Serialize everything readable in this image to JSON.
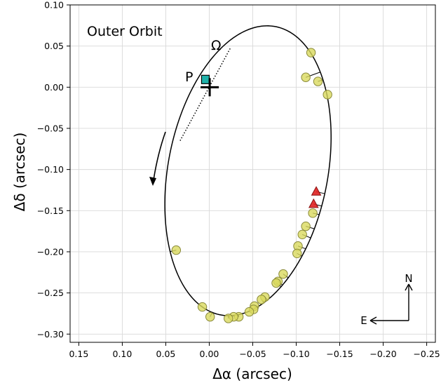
{
  "chart_data": {
    "type": "scatter",
    "title": "Outer Orbit",
    "xlabel": "Δα (arcsec)",
    "ylabel": "Δδ (arcsec)",
    "xlim": [
      0.16,
      -0.26
    ],
    "ylim": [
      -0.31,
      0.1
    ],
    "x_inverted": true,
    "grid": true,
    "xticks": [
      0.15,
      0.1,
      0.05,
      0.0,
      -0.05,
      -0.1,
      -0.15,
      -0.2,
      -0.25
    ],
    "xtick_labels": [
      "0.15",
      "0.10",
      "0.05",
      "0.00",
      "−0.05",
      "−0.10",
      "−0.15",
      "−0.20",
      "−0.25"
    ],
    "yticks": [
      0.1,
      0.05,
      0.0,
      -0.05,
      -0.1,
      -0.15,
      -0.2,
      -0.25,
      -0.3
    ],
    "ytick_labels": [
      "0.10",
      "0.05",
      "0.00",
      "−0.05",
      "−0.10",
      "−0.15",
      "−0.20",
      "−0.25",
      "−0.30"
    ],
    "orbit": {
      "center": [
        -0.0445,
        -0.1015
      ],
      "semi_axes": [
        0.178,
        0.092
      ],
      "rotation_deg": -80.2,
      "color": "#000000"
    },
    "annotations": {
      "omega_label": "Ω",
      "periastron_label": "P",
      "periastron": [
        0.0,
        0.0
      ],
      "ascending_node": [
        -0.024,
        0.047
      ],
      "descending_node": [
        0.034,
        -0.066
      ],
      "primary_marker": [
        -0.0005,
        0.0
      ]
    },
    "series": [
      {
        "marker": "circle",
        "color": "#d9d95e",
        "edge": "#8a8a3a",
        "points": [
          [
            -0.117,
            0.042
          ],
          [
            -0.111,
            0.012
          ],
          [
            -0.125,
            0.007
          ],
          [
            -0.136,
            -0.009
          ],
          [
            -0.119,
            -0.153
          ],
          [
            -0.111,
            -0.169
          ],
          [
            -0.107,
            -0.179
          ],
          [
            -0.102,
            -0.193
          ],
          [
            -0.101,
            -0.202
          ],
          [
            -0.085,
            -0.227
          ],
          [
            -0.079,
            -0.236
          ],
          [
            -0.077,
            -0.238
          ],
          [
            -0.064,
            -0.255
          ],
          [
            -0.06,
            -0.258
          ],
          [
            -0.052,
            -0.266
          ],
          [
            -0.051,
            -0.27
          ],
          [
            -0.046,
            -0.273
          ],
          [
            -0.034,
            -0.279
          ],
          [
            -0.028,
            -0.279
          ],
          [
            -0.022,
            -0.281
          ],
          [
            -0.001,
            -0.279
          ],
          [
            0.008,
            -0.267
          ],
          [
            0.038,
            -0.198
          ]
        ]
      },
      {
        "marker": "triangle",
        "color": "#e02020",
        "edge": "#8a1010",
        "points": [
          [
            -0.123,
            -0.127
          ],
          [
            -0.12,
            -0.142
          ]
        ]
      }
    ],
    "compass": {
      "north": "N",
      "east": "E"
    }
  }
}
